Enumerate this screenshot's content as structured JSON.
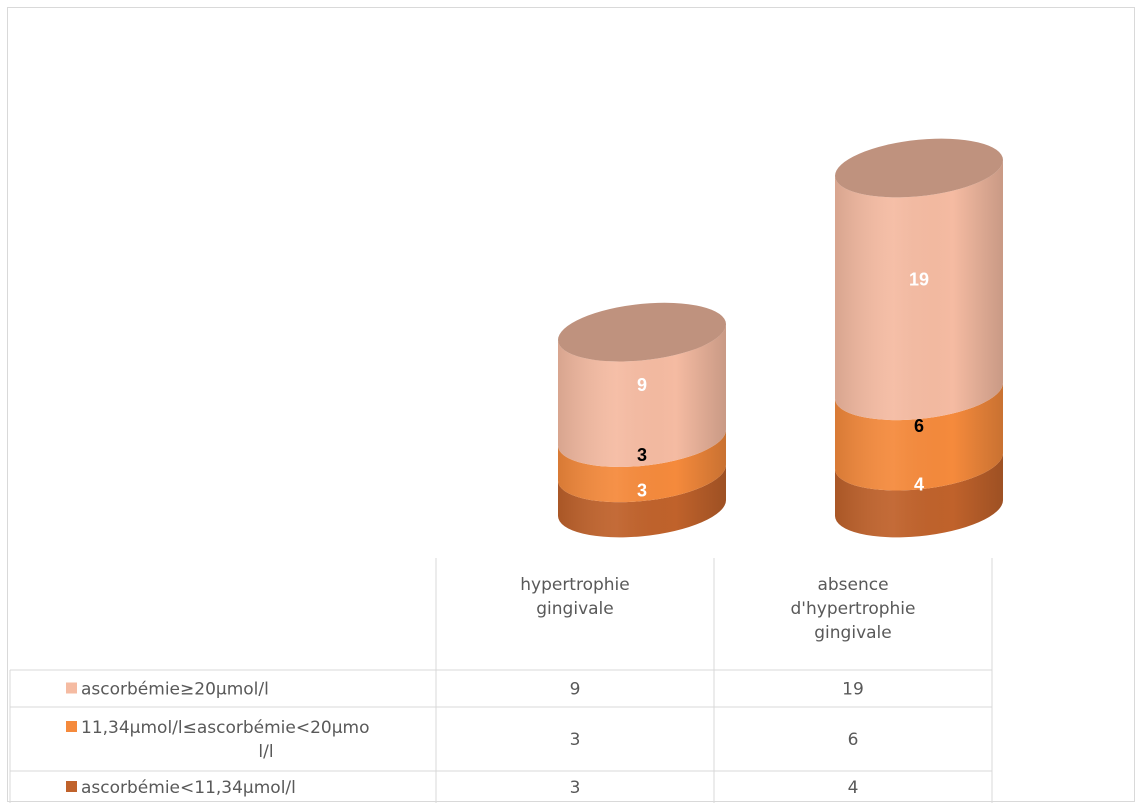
{
  "chart_data": {
    "type": "bar",
    "categories": [
      "hypertrophie gingivale",
      "absence d'hypertrophie gingivale"
    ],
    "category_lines": [
      [
        "hypertrophie",
        "gingivale"
      ],
      [
        "absence",
        "d'hypertrophie",
        "gingivale"
      ]
    ],
    "series": [
      {
        "name": "ascorbémie<11,34µmol/l",
        "name_lines": [
          "ascorbémie<11,34µmol/l"
        ],
        "values": [
          3,
          4
        ],
        "color": "#c0622b",
        "label_color": "#ffffff"
      },
      {
        "name": "11,34µmol/l≤ascorbémie<20µmol/l",
        "name_lines": [
          "11,34µmol/l≤ascorbémie<20µmo",
          "l/l"
        ],
        "values": [
          3,
          6
        ],
        "color": "#f58a3c",
        "label_color": "#000000"
      },
      {
        "name": "ascorbémie≥20µmol/l",
        "name_lines": [
          "ascorbémie≥20µmol/l"
        ],
        "values": [
          9,
          19
        ],
        "color": "#f5bba2",
        "label_color": "#ffffff"
      }
    ],
    "table_order": [
      2,
      1,
      0
    ],
    "stacked": true,
    "shape": "cylinder",
    "legend": "data-table",
    "ylim": [
      0,
      29
    ],
    "grid": false
  }
}
